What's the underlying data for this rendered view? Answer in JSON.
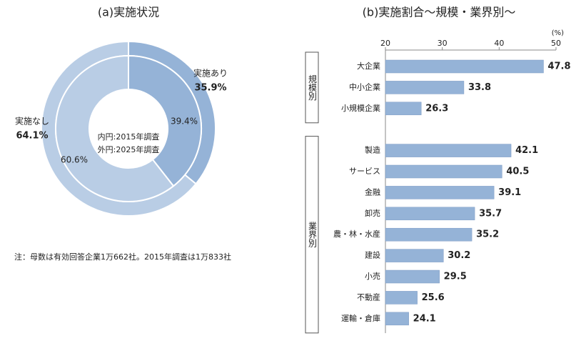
{
  "chart_data": [
    {
      "type": "donut",
      "title": "(a)実施状況",
      "categories": [
        "実施あり",
        "実施なし"
      ],
      "colors": [
        "#95b3d7",
        "#b9cde5"
      ],
      "series": [
        {
          "name": "外円:2025年調査",
          "values": [
            35.9,
            64.1
          ],
          "value_labels": [
            "35.9%",
            "64.1%"
          ]
        },
        {
          "name": "内円:2015年調査",
          "values": [
            39.4,
            60.6
          ],
          "value_labels": [
            "39.4%",
            "60.6%"
          ]
        }
      ],
      "note": "注：母数は有効回答企業1万662社。2015年調査は1万833社"
    },
    {
      "type": "hbar",
      "title": "(b)実施割合～規模・業界別～",
      "unit": "(%)",
      "color": "#95b3d7",
      "xlim": [
        20,
        50
      ],
      "xticks": [
        20,
        30,
        40,
        50
      ],
      "groups": [
        {
          "label": "規模別",
          "categories": [
            "大企業",
            "中小企業",
            "小規模企業"
          ],
          "values": [
            47.8,
            33.8,
            26.3
          ]
        },
        {
          "label": "業界別",
          "categories": [
            "製造",
            "サービス",
            "金融",
            "卸売",
            "農・林・水産",
            "建設",
            "小売",
            "不動産",
            "運輸・倉庫"
          ],
          "values": [
            42.1,
            40.5,
            39.1,
            35.7,
            35.2,
            30.2,
            29.5,
            25.6,
            24.1
          ]
        }
      ]
    }
  ]
}
